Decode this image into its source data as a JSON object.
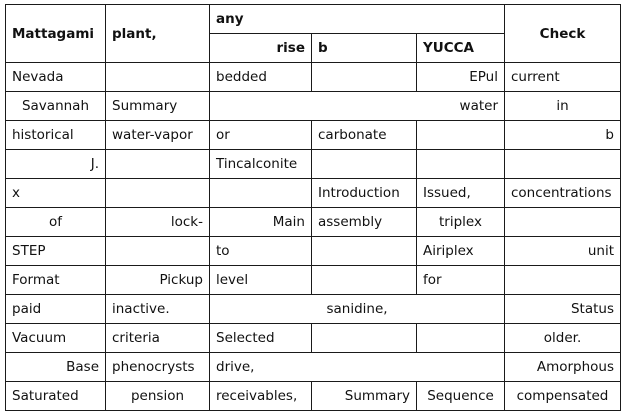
{
  "header": {
    "c1": "Mattagami",
    "c2": "plant,",
    "group": "any",
    "sub1": "rise",
    "sub2": "b",
    "sub3": "YUCCA",
    "c6": "Check"
  },
  "rows": [
    [
      "Nevada",
      "",
      "bedded",
      "",
      "EPul",
      "current"
    ],
    [
      "Savannah",
      "Summary",
      "water",
      "in"
    ],
    [
      "historical",
      "water-vapor",
      "or",
      "carbonate",
      "",
      "b"
    ],
    [
      "J.",
      "",
      "Tincalconite",
      "",
      "",
      ""
    ],
    [
      "x",
      "",
      "",
      "Introduction",
      "Issued,",
      "concentrations"
    ],
    [
      "of",
      "lock-",
      "Main",
      "assembly",
      "triplex",
      ""
    ],
    [
      "STEP",
      "",
      "to",
      "",
      "Airiplex",
      "unit"
    ],
    [
      "Format",
      "Pickup",
      "level",
      "",
      "for",
      ""
    ],
    [
      "paid",
      "inactive.",
      "sanidine,",
      "Status"
    ],
    [
      "Vacuum",
      "criteria",
      "Selected",
      "",
      "",
      "older."
    ],
    [
      "Base",
      "phenocrysts",
      "drive,",
      "Amorphous"
    ],
    [
      "Saturated",
      "pension",
      "receivables,",
      "Summary",
      "Sequence",
      "compensated"
    ]
  ]
}
